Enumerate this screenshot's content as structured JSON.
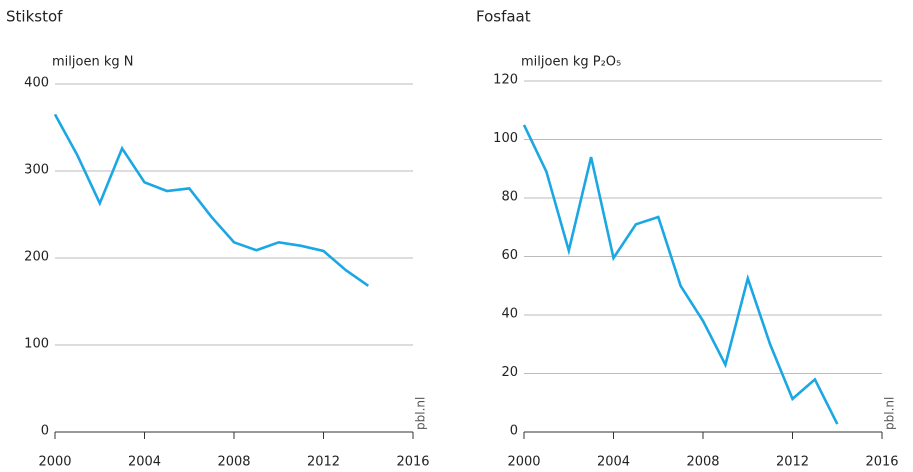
{
  "chart_data": [
    {
      "type": "line",
      "title": "Stikstof",
      "y_label": "miljoen kg N",
      "source": "pbl.nl",
      "x": [
        2000,
        2001,
        2002,
        2003,
        2004,
        2005,
        2006,
        2007,
        2008,
        2009,
        2010,
        2011,
        2012,
        2013,
        2014
      ],
      "values": [
        365,
        318,
        263,
        326,
        287,
        277,
        280,
        247,
        218,
        209,
        218,
        214,
        208,
        186,
        168
      ],
      "color": "#1aa7e4",
      "xlim": [
        2000,
        2016
      ],
      "xticks": [
        2000,
        2004,
        2008,
        2012,
        2016
      ],
      "ylim": [
        0,
        400
      ],
      "yticks": [
        0,
        100,
        200,
        300,
        400
      ],
      "grid": true
    },
    {
      "type": "line",
      "title": "Fosfaat",
      "y_label": "miljoen kg P₂O₅",
      "source": "pbl.nl",
      "x": [
        2000,
        2001,
        2002,
        2003,
        2004,
        2005,
        2006,
        2007,
        2008,
        2009,
        2010,
        2011,
        2012,
        2013,
        2014
      ],
      "values": [
        105,
        89,
        62,
        94,
        59.5,
        71,
        73.5,
        50,
        38,
        23,
        52.5,
        30,
        11.3,
        18,
        2.7
      ],
      "color": "#1aa7e4",
      "xlim": [
        2000,
        2016
      ],
      "xticks": [
        2000,
        2004,
        2008,
        2012,
        2016
      ],
      "ylim": [
        0,
        120
      ],
      "yticks": [
        0,
        20,
        40,
        60,
        80,
        100,
        120
      ],
      "grid": true
    }
  ]
}
